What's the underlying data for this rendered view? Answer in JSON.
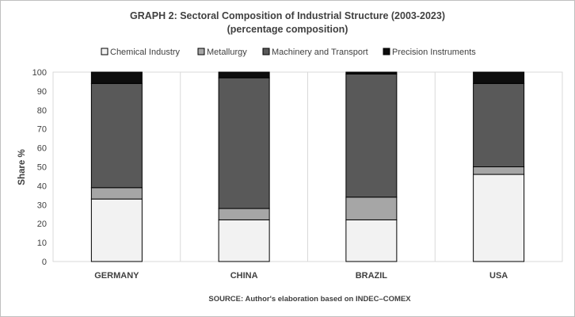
{
  "chart_data": {
    "type": "bar",
    "stacked": true,
    "title": "GRAPH 2: Sectoral Composition of Industrial Structure (2003-2023)",
    "subtitle": "(percentage composition)",
    "ylabel": "Share %",
    "xlabel": "",
    "ylim": [
      0,
      100
    ],
    "yticks": [
      0,
      10,
      20,
      30,
      40,
      50,
      60,
      70,
      80,
      90,
      100
    ],
    "categories": [
      "GERMANY",
      "CHINA",
      "BRAZIL",
      "USA"
    ],
    "series": [
      {
        "name": "Chemical Industry",
        "color": "#f2f2f2",
        "values": [
          33,
          22,
          22,
          46
        ]
      },
      {
        "name": "Metallurgy",
        "color": "#a6a6a6",
        "values": [
          6,
          6,
          12,
          4
        ]
      },
      {
        "name": "Machinery and Transport",
        "color": "#595959",
        "values": [
          55,
          69,
          65,
          44
        ]
      },
      {
        "name": "Precision Instruments",
        "color": "#0d0d0d",
        "values": [
          6,
          3,
          1,
          6
        ]
      }
    ],
    "legend_position": "top",
    "grid": "vertical category separators",
    "source": "SOURCE: Author's elaboration based on INDEC–COMEX"
  }
}
